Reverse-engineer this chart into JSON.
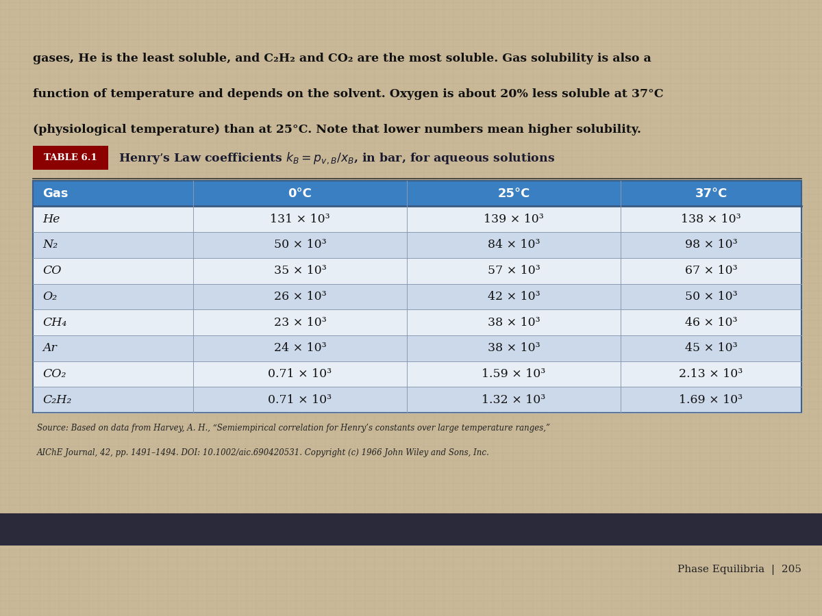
{
  "intro_lines": [
    "gases, He is the least soluble, and C₂H₂ and CO₂ are the most soluble. Gas solubility is also a",
    "function of temperature and depends on the solvent. Oxygen is about 20% less soluble at 37°C",
    "(physiological temperature) than at 25°C. Note that lower numbers mean higher solubility."
  ],
  "table_label": "TABLE 6.1",
  "table_title": "Henry’s Law coefficients $k_B = p_{v,B}/x_B$, in bar, for aqueous solutions",
  "header_row": [
    "Gas",
    "0°C",
    "25°C",
    "37°C"
  ],
  "data_rows": [
    [
      "He",
      "131 × 10³",
      "139 × 10³",
      "138 × 10³"
    ],
    [
      "N₂",
      "50 × 10³",
      "84 × 10³",
      "98 × 10³"
    ],
    [
      "CO",
      "35 × 10³",
      "57 × 10³",
      "67 × 10³"
    ],
    [
      "O₂",
      "26 × 10³",
      "42 × 10³",
      "50 × 10³"
    ],
    [
      "CH₄",
      "23 × 10³",
      "38 × 10³",
      "46 × 10³"
    ],
    [
      "Ar",
      "24 × 10³",
      "38 × 10³",
      "45 × 10³"
    ],
    [
      "CO₂",
      "0.71 × 10³",
      "1.59 × 10³",
      "2.13 × 10³"
    ],
    [
      "C₂H₂",
      "0.71 × 10³",
      "1.32 × 10³",
      "1.69 × 10³"
    ]
  ],
  "source_line1": "Source: Based on data from Harvey, A. H., “Semiempirical correlation for Henry’s constants over large temperature ranges,”",
  "source_line2": "AIChE Journal, 42, pp. 1491–1494. DOI: 10.1002/aic.690420531. Copyright (c) 1966 John Wiley and Sons, Inc.",
  "footer_text": "Phase Equilibria  |  205",
  "header_bg": "#3a7fc1",
  "header_text_color": "#ffffff",
  "alt_row_bg": "#ccd9ea",
  "normal_row_bg": "#e8eef5",
  "bg_color": "#c8b898",
  "dark_bar_color": "#2a2a3a",
  "table_label_box_color": "#8B0000",
  "table_label_text_color": "#ffffff",
  "title_text_color": "#1a1a2e",
  "intro_text_color": "#111111",
  "source_text_color": "#222222",
  "footer_text_color": "#222222",
  "grid_line_color": "#8a9ab0",
  "outer_border_color": "#3a6090"
}
